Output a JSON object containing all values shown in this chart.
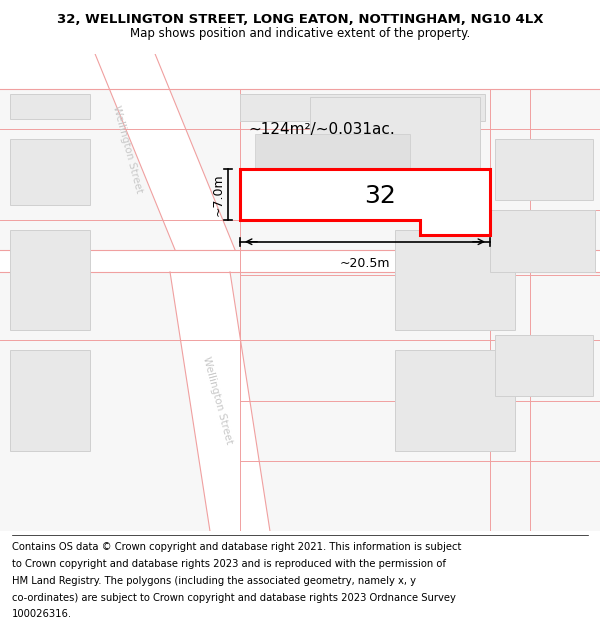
{
  "title_line1": "32, WELLINGTON STREET, LONG EATON, NOTTINGHAM, NG10 4LX",
  "title_line2": "Map shows position and indicative extent of the property.",
  "map_bg": "#f7f7f7",
  "street_color": "#ffffff",
  "road_line_color": "#f0a0a0",
  "building_fill": "#e8e8e8",
  "building_edge": "#d0d0d0",
  "highlight_fill": "#ffffff",
  "highlight_edge": "#ff0000",
  "street_label_color": "#c8c8c8",
  "area_text": "~124m²/~0.031ac.",
  "number_text": "32",
  "dim_width": "~20.5m",
  "dim_height": "~7.0m",
  "title_fontsize": 9.5,
  "subtitle_fontsize": 8.5,
  "footer_fontsize": 7.2,
  "footer_lines": [
    "Contains OS data © Crown copyright and database right 2021. This information is subject",
    "to Crown copyright and database rights 2023 and is reproduced with the permission of",
    "HM Land Registry. The polygons (including the associated geometry, namely x, y",
    "co-ordinates) are subject to Crown copyright and database rights 2023 Ordnance Survey",
    "100026316."
  ]
}
